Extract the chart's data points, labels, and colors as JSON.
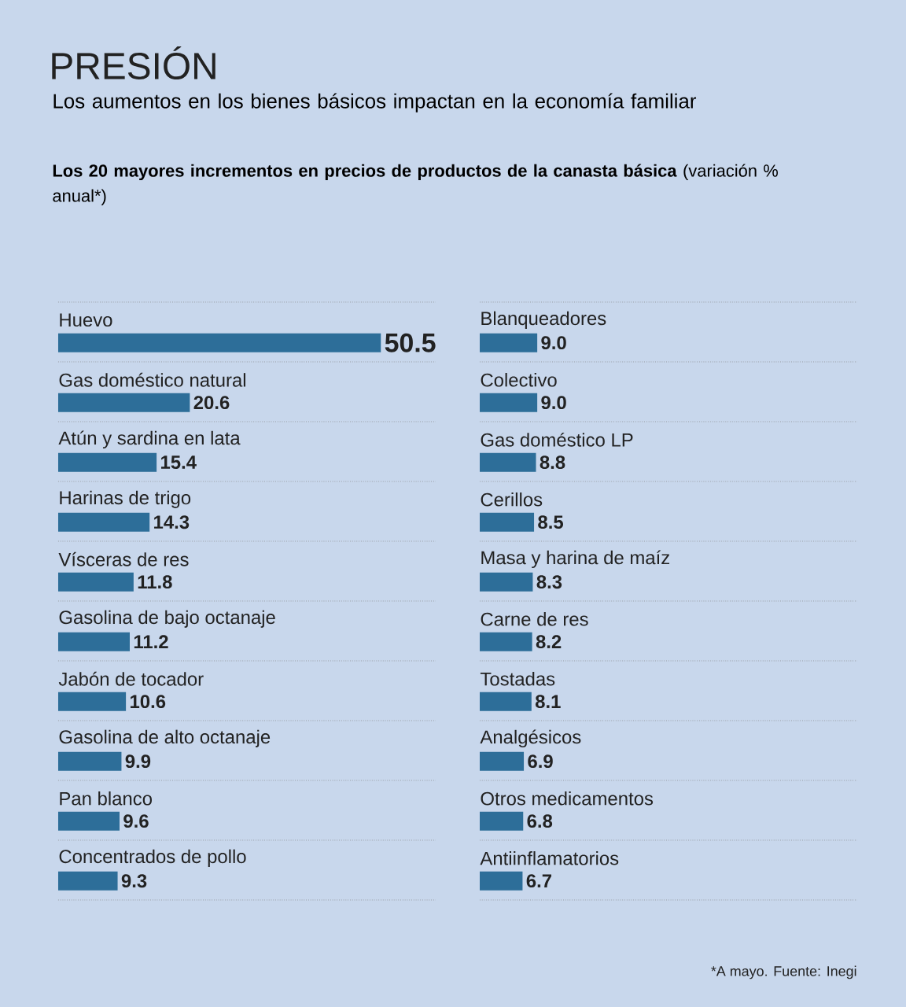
{
  "chart_data": [
    {
      "type": "bar",
      "orientation": "horizontal",
      "title": "PRESIÓN",
      "subtitle": "Los aumentos en los bienes básicos impactan en la economía familiar",
      "annotations": [
        "**Los 20 mayores incrementos en precios de productos de la canasta básica** (variación % anual*)"
      ],
      "categories": [
        "Huevo",
        "Gas doméstico natural",
        "Atún y sardina en lata",
        "Harinas de trigo",
        "Vísceras de res",
        "Gasolina de bajo octanaje",
        "Jabón de tocador",
        "Gasolina de alto octanaje",
        "Pan blanco",
        "Concentrados de pollo"
      ],
      "values": [
        50.5,
        20.6,
        15.4,
        14.3,
        11.8,
        11.2,
        10.6,
        9.9,
        9.6,
        9.3
      ],
      "value_labels": [
        "50.5",
        "20.6",
        "15.4",
        "14.3",
        "11.8",
        "11.2",
        "10.6",
        "9.9",
        "9.6",
        "9.3"
      ],
      "color": "#2d6e99"
    },
    {
      "type": "bar",
      "orientation": "horizontal",
      "annotations": [
        "*A mayo. Fuente: Inegi"
      ],
      "categories": [
        "Blanqueadores",
        "Colectivo",
        "Gas doméstico LP",
        "Cerillos",
        "Masa y harina de maíz",
        "Carne de res",
        "Tostadas",
        "Analgésicos",
        "Otros medicamentos",
        "Antiinflamatorios"
      ],
      "values": [
        9.0,
        9.0,
        8.8,
        8.5,
        8.3,
        8.2,
        8.1,
        6.9,
        6.8,
        6.7
      ],
      "value_labels": [
        "9.0",
        "9.0",
        "8.8",
        "8.5",
        "8.3",
        "8.2",
        "8.1",
        "6.9",
        "6.8",
        "6.7"
      ],
      "color": "#2d6e99"
    }
  ]
}
